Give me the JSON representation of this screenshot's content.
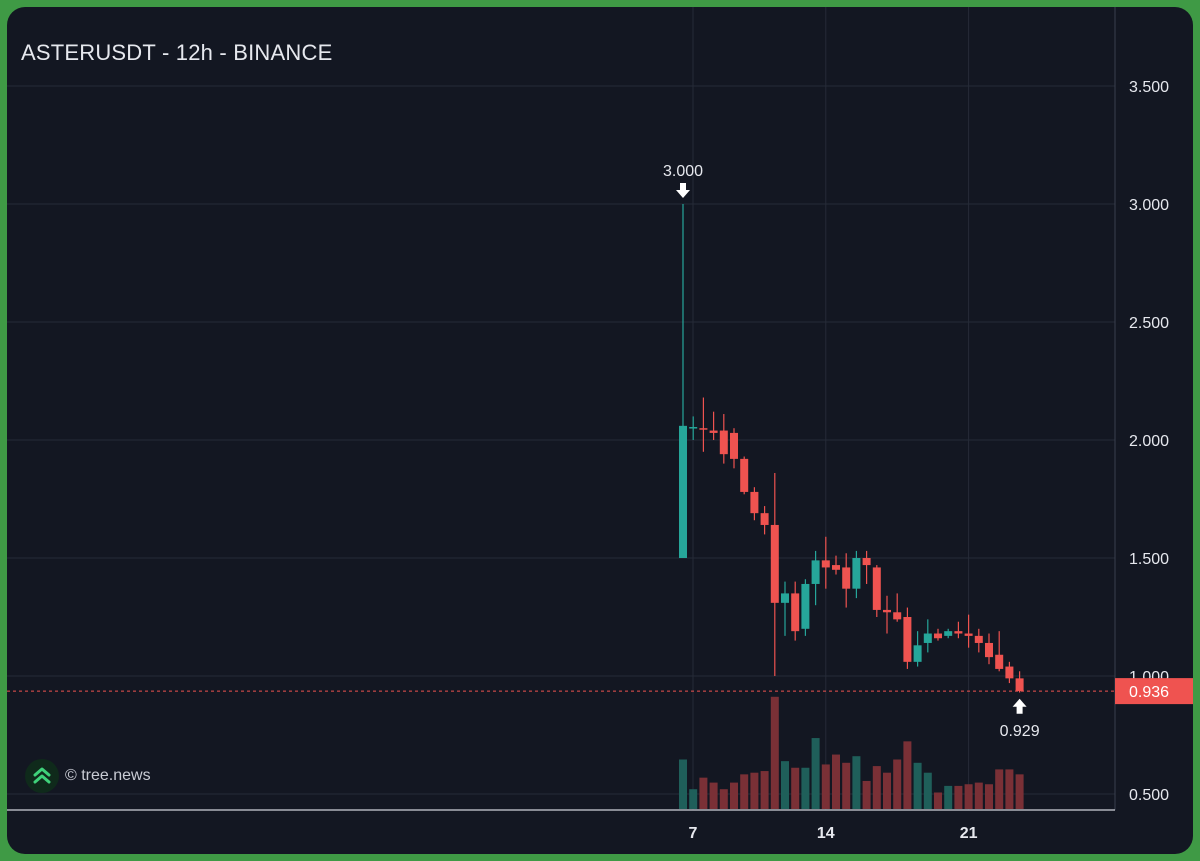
{
  "header": {
    "title": "ASTERUSDT - 12h - BINANCE"
  },
  "brand": {
    "text": "© tree.news",
    "logo_icon": "tree-news-logo-icon"
  },
  "colors": {
    "up": "#26a69a",
    "down": "#ef5350",
    "background": "#131722",
    "frame": "#3f9a45",
    "grid": "#262b38",
    "text": "#e6e8ee",
    "price_line": "#ef5350"
  },
  "chart_data": {
    "type": "candlestick",
    "title": "ASTERUSDT - 12h - BINANCE",
    "interval": "12h",
    "grid": true,
    "ylim": [
      0.45,
      3.75
    ],
    "y_ticks": [
      "3.500",
      "3.000",
      "2.500",
      "2.000",
      "1.500",
      "1.000",
      "0.500"
    ],
    "y_tick_values": [
      3.5,
      3.0,
      2.5,
      2.0,
      1.5,
      1.0,
      0.5
    ],
    "x_ticks": [
      {
        "label": "7",
        "index": 0
      },
      {
        "label": "14",
        "index": 14
      },
      {
        "label": "21",
        "index": 28
      }
    ],
    "candles": [
      {
        "o": 1.5,
        "h": 3.0,
        "l": 1.5,
        "c": 2.06,
        "v": 0.3
      },
      {
        "o": 2.05,
        "h": 2.1,
        "l": 2.0,
        "c": 2.055,
        "v": 0.12
      },
      {
        "o": 2.05,
        "h": 2.18,
        "l": 1.95,
        "c": 2.045,
        "v": 0.19
      },
      {
        "o": 2.04,
        "h": 2.12,
        "l": 2.0,
        "c": 2.03,
        "v": 0.16
      },
      {
        "o": 2.04,
        "h": 2.11,
        "l": 1.9,
        "c": 1.94,
        "v": 0.12
      },
      {
        "o": 2.03,
        "h": 2.05,
        "l": 1.88,
        "c": 1.92,
        "v": 0.16
      },
      {
        "o": 1.92,
        "h": 1.93,
        "l": 1.77,
        "c": 1.78,
        "v": 0.21
      },
      {
        "o": 1.78,
        "h": 1.8,
        "l": 1.66,
        "c": 1.69,
        "v": 0.22
      },
      {
        "o": 1.69,
        "h": 1.72,
        "l": 1.6,
        "c": 1.64,
        "v": 0.23
      },
      {
        "o": 1.64,
        "h": 1.86,
        "l": 1.0,
        "c": 1.31,
        "v": 0.68
      },
      {
        "o": 1.31,
        "h": 1.4,
        "l": 1.17,
        "c": 1.35,
        "v": 0.29
      },
      {
        "o": 1.35,
        "h": 1.4,
        "l": 1.15,
        "c": 1.19,
        "v": 0.25
      },
      {
        "o": 1.2,
        "h": 1.41,
        "l": 1.17,
        "c": 1.39,
        "v": 0.25
      },
      {
        "o": 1.39,
        "h": 1.53,
        "l": 1.3,
        "c": 1.49,
        "v": 0.43
      },
      {
        "o": 1.49,
        "h": 1.59,
        "l": 1.37,
        "c": 1.46,
        "v": 0.27
      },
      {
        "o": 1.47,
        "h": 1.51,
        "l": 1.43,
        "c": 1.45,
        "v": 0.33
      },
      {
        "o": 1.46,
        "h": 1.52,
        "l": 1.29,
        "c": 1.37,
        "v": 0.28
      },
      {
        "o": 1.37,
        "h": 1.53,
        "l": 1.33,
        "c": 1.5,
        "v": 0.32
      },
      {
        "o": 1.5,
        "h": 1.53,
        "l": 1.39,
        "c": 1.47,
        "v": 0.17
      },
      {
        "o": 1.46,
        "h": 1.47,
        "l": 1.25,
        "c": 1.28,
        "v": 0.26
      },
      {
        "o": 1.28,
        "h": 1.34,
        "l": 1.18,
        "c": 1.27,
        "v": 0.22
      },
      {
        "o": 1.27,
        "h": 1.35,
        "l": 1.23,
        "c": 1.24,
        "v": 0.3
      },
      {
        "o": 1.25,
        "h": 1.29,
        "l": 1.03,
        "c": 1.06,
        "v": 0.41
      },
      {
        "o": 1.06,
        "h": 1.19,
        "l": 1.04,
        "c": 1.13,
        "v": 0.28
      },
      {
        "o": 1.14,
        "h": 1.24,
        "l": 1.1,
        "c": 1.18,
        "v": 0.22
      },
      {
        "o": 1.18,
        "h": 1.2,
        "l": 1.15,
        "c": 1.16,
        "v": 0.1
      },
      {
        "o": 1.17,
        "h": 1.2,
        "l": 1.16,
        "c": 1.19,
        "v": 0.14
      },
      {
        "o": 1.19,
        "h": 1.23,
        "l": 1.16,
        "c": 1.18,
        "v": 0.14
      },
      {
        "o": 1.18,
        "h": 1.26,
        "l": 1.12,
        "c": 1.17,
        "v": 0.15
      },
      {
        "o": 1.17,
        "h": 1.2,
        "l": 1.1,
        "c": 1.14,
        "v": 0.16
      },
      {
        "o": 1.14,
        "h": 1.18,
        "l": 1.05,
        "c": 1.08,
        "v": 0.15
      },
      {
        "o": 1.09,
        "h": 1.19,
        "l": 1.02,
        "c": 1.03,
        "v": 0.24
      },
      {
        "o": 1.04,
        "h": 1.06,
        "l": 0.97,
        "c": 0.99,
        "v": 0.24
      },
      {
        "o": 0.99,
        "h": 1.02,
        "l": 0.93,
        "c": 0.936,
        "v": 0.21
      }
    ],
    "annotations": [
      {
        "label": "3.000",
        "price": 3.0,
        "index": 0,
        "kind": "high"
      },
      {
        "label": "0.929",
        "price": 0.929,
        "index": 33,
        "kind": "low"
      }
    ],
    "last_price": {
      "label": "0.936",
      "value": 0.936
    }
  }
}
